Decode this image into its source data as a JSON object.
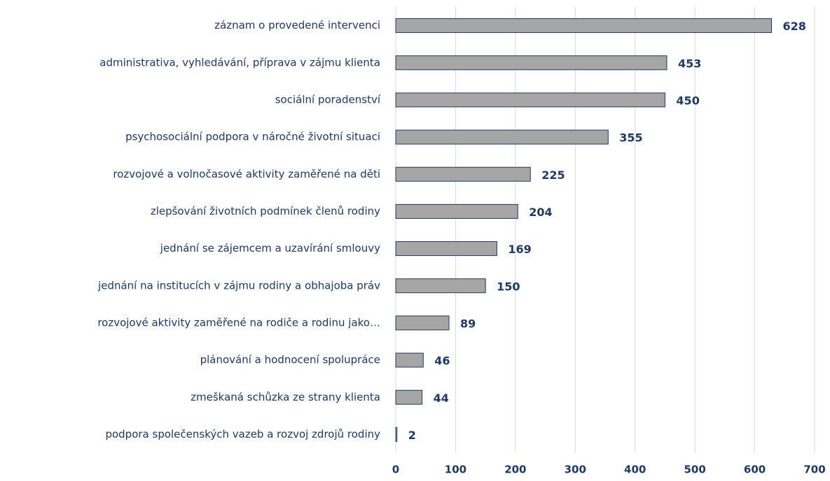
{
  "chart_data": {
    "type": "bar",
    "orientation": "horizontal",
    "categories": [
      "záznam o provedené intervenci",
      "administrativa, vyhledávání, příprava v zájmu klienta",
      "sociální poradenství",
      "psychosociální podpora v náročné životní situaci",
      "rozvojové a volnočasové aktivity zaměřené na děti",
      "zlepšování životních podmínek členů rodiny",
      "jednání se zájemcem a uzavírání smlouvy",
      "jednání na institucích v zájmu rodiny a obhajoba práv",
      "rozvojové aktivity zaměřené na rodiče a rodinu jako…",
      "plánování a hodnocení spolupráce",
      "zmeškaná schůzka ze strany klienta",
      "podpora společenských vazeb a rozvoj zdrojů rodiny"
    ],
    "values": [
      628,
      453,
      450,
      355,
      225,
      204,
      169,
      150,
      89,
      46,
      44,
      2
    ],
    "color": "#a6a6a6",
    "edge_color": "#1f3864",
    "xlim": [
      0,
      700
    ],
    "xticks": [
      0,
      100,
      200,
      300,
      400,
      500,
      600,
      700
    ],
    "grid": true
  }
}
